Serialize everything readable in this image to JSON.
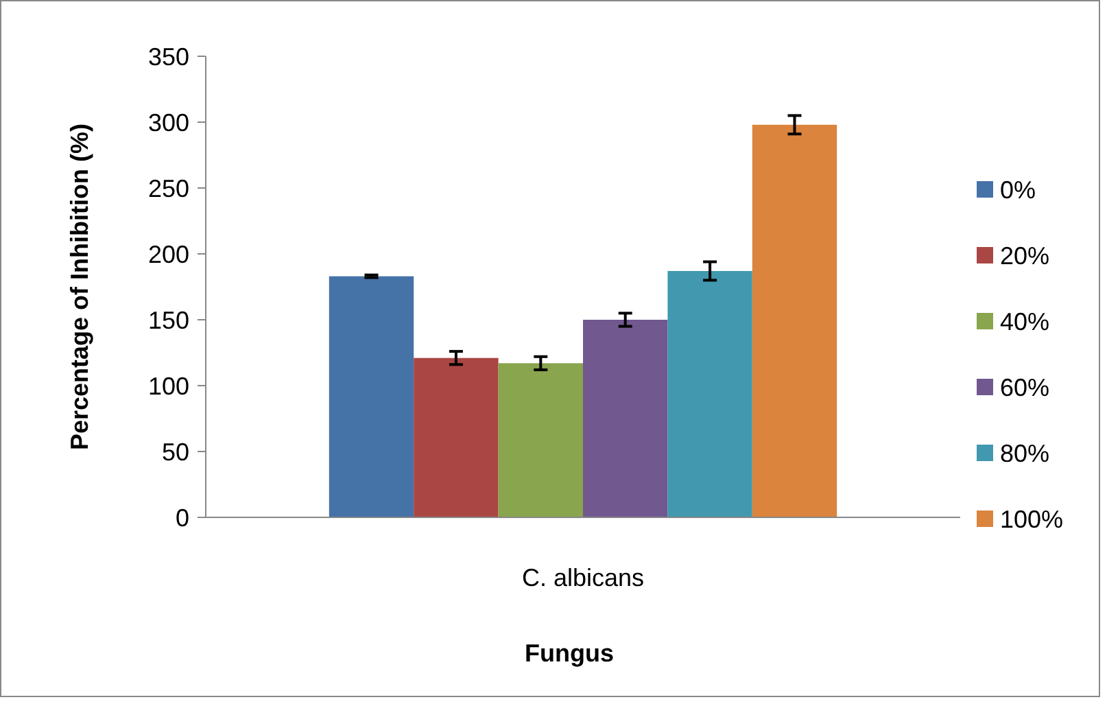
{
  "chart_data": {
    "type": "bar",
    "xlabel": "Fungus",
    "ylabel": "Percentage of Inhibition (%)",
    "categories": [
      "C. albicans"
    ],
    "series": [
      {
        "name": "0%",
        "color": "#4572a7",
        "values": [
          183
        ],
        "errors": [
          1
        ]
      },
      {
        "name": "20%",
        "color": "#aa4643",
        "values": [
          121
        ],
        "errors": [
          5
        ]
      },
      {
        "name": "40%",
        "color": "#89a54e",
        "values": [
          117
        ],
        "errors": [
          5
        ]
      },
      {
        "name": "60%",
        "color": "#71588f",
        "values": [
          150
        ],
        "errors": [
          5
        ]
      },
      {
        "name": "80%",
        "color": "#4198af",
        "values": [
          187
        ],
        "errors": [
          7
        ]
      },
      {
        "name": "100%",
        "color": "#db843d",
        "values": [
          298
        ],
        "errors": [
          7
        ]
      }
    ],
    "ylim": [
      0,
      350
    ],
    "yticks": [
      0,
      50,
      100,
      150,
      200,
      250,
      300,
      350
    ],
    "grid": false,
    "legend": "right"
  }
}
